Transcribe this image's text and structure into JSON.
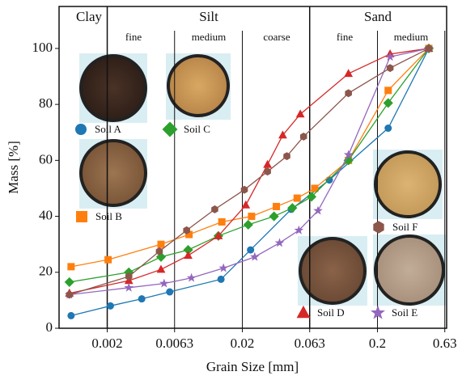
{
  "chart_data": {
    "type": "line",
    "x_label": "Grain Size [mm]",
    "y_label": "Mass [%]",
    "x_scale": "log",
    "xlim": [
      0.00088,
      0.65
    ],
    "xticks": [
      0.002,
      0.0063,
      0.02,
      0.063,
      0.2,
      0.63
    ],
    "ylim": [
      0,
      115
    ],
    "yticks": [
      0,
      20,
      40,
      60,
      80,
      100
    ],
    "zone_labels": [
      "Clay",
      "Silt",
      "Sand"
    ],
    "subzone_labels": [
      "fine",
      "medium",
      "coarse",
      "fine",
      "medium"
    ],
    "series": [
      {
        "name": "Soil A",
        "color": "#1f77b4",
        "marker": "circle",
        "x": [
          0.00108,
          0.00211,
          0.0036,
          0.0058,
          0.0139,
          0.023,
          0.046,
          0.088,
          0.24,
          0.48
        ],
        "values": [
          4.5,
          8,
          10.5,
          13,
          17.5,
          28,
          42.5,
          53,
          71.5,
          100
        ]
      },
      {
        "name": "Soil B",
        "color": "#ff7f0e",
        "marker": "square",
        "x": [
          0.00108,
          0.00203,
          0.005,
          0.00806,
          0.0141,
          0.0234,
          0.0357,
          0.0509,
          0.0687,
          0.122,
          0.24,
          0.48
        ],
        "values": [
          22,
          24.5,
          30,
          33.5,
          38,
          40,
          43.5,
          46.5,
          50,
          60,
          85,
          100
        ]
      },
      {
        "name": "Soil C",
        "color": "#2ca02c",
        "marker": "diamond",
        "x": [
          0.00105,
          0.00289,
          0.005,
          0.00794,
          0.0133,
          0.0221,
          0.0343,
          0.0469,
          0.065,
          0.122,
          0.24,
          0.48
        ],
        "values": [
          16.5,
          20,
          25.5,
          28,
          33,
          37,
          40,
          43,
          47,
          60,
          80.5,
          100
        ]
      },
      {
        "name": "Soil D",
        "color": "#d62728",
        "marker": "triangle",
        "x": [
          0.00105,
          0.00289,
          0.005,
          0.00794,
          0.0133,
          0.0212,
          0.0307,
          0.0398,
          0.0537,
          0.122,
          0.248,
          0.48
        ],
        "values": [
          12.5,
          17,
          21,
          26,
          33,
          44,
          58.5,
          69,
          76.5,
          91,
          98,
          100
        ]
      },
      {
        "name": "Soil E",
        "color": "#9467bd",
        "marker": "star",
        "x": [
          0.00105,
          0.00289,
          0.00527,
          0.0084,
          0.0145,
          0.0247,
          0.0377,
          0.0524,
          0.0726,
          0.122,
          0.248,
          0.48
        ],
        "values": [
          12,
          14.5,
          16,
          18,
          21.5,
          25.5,
          30.5,
          35,
          42,
          62,
          97,
          100
        ]
      },
      {
        "name": "Soil F",
        "color": "#8c564b",
        "marker": "hexagon",
        "x": [
          0.00105,
          0.00289,
          0.00486,
          0.00774,
          0.0125,
          0.0207,
          0.0307,
          0.0427,
          0.0568,
          0.122,
          0.248,
          0.48
        ],
        "values": [
          12,
          18.5,
          27.5,
          35,
          42.5,
          49.5,
          56,
          61.5,
          68.5,
          84,
          93,
          100
        ]
      }
    ]
  }
}
